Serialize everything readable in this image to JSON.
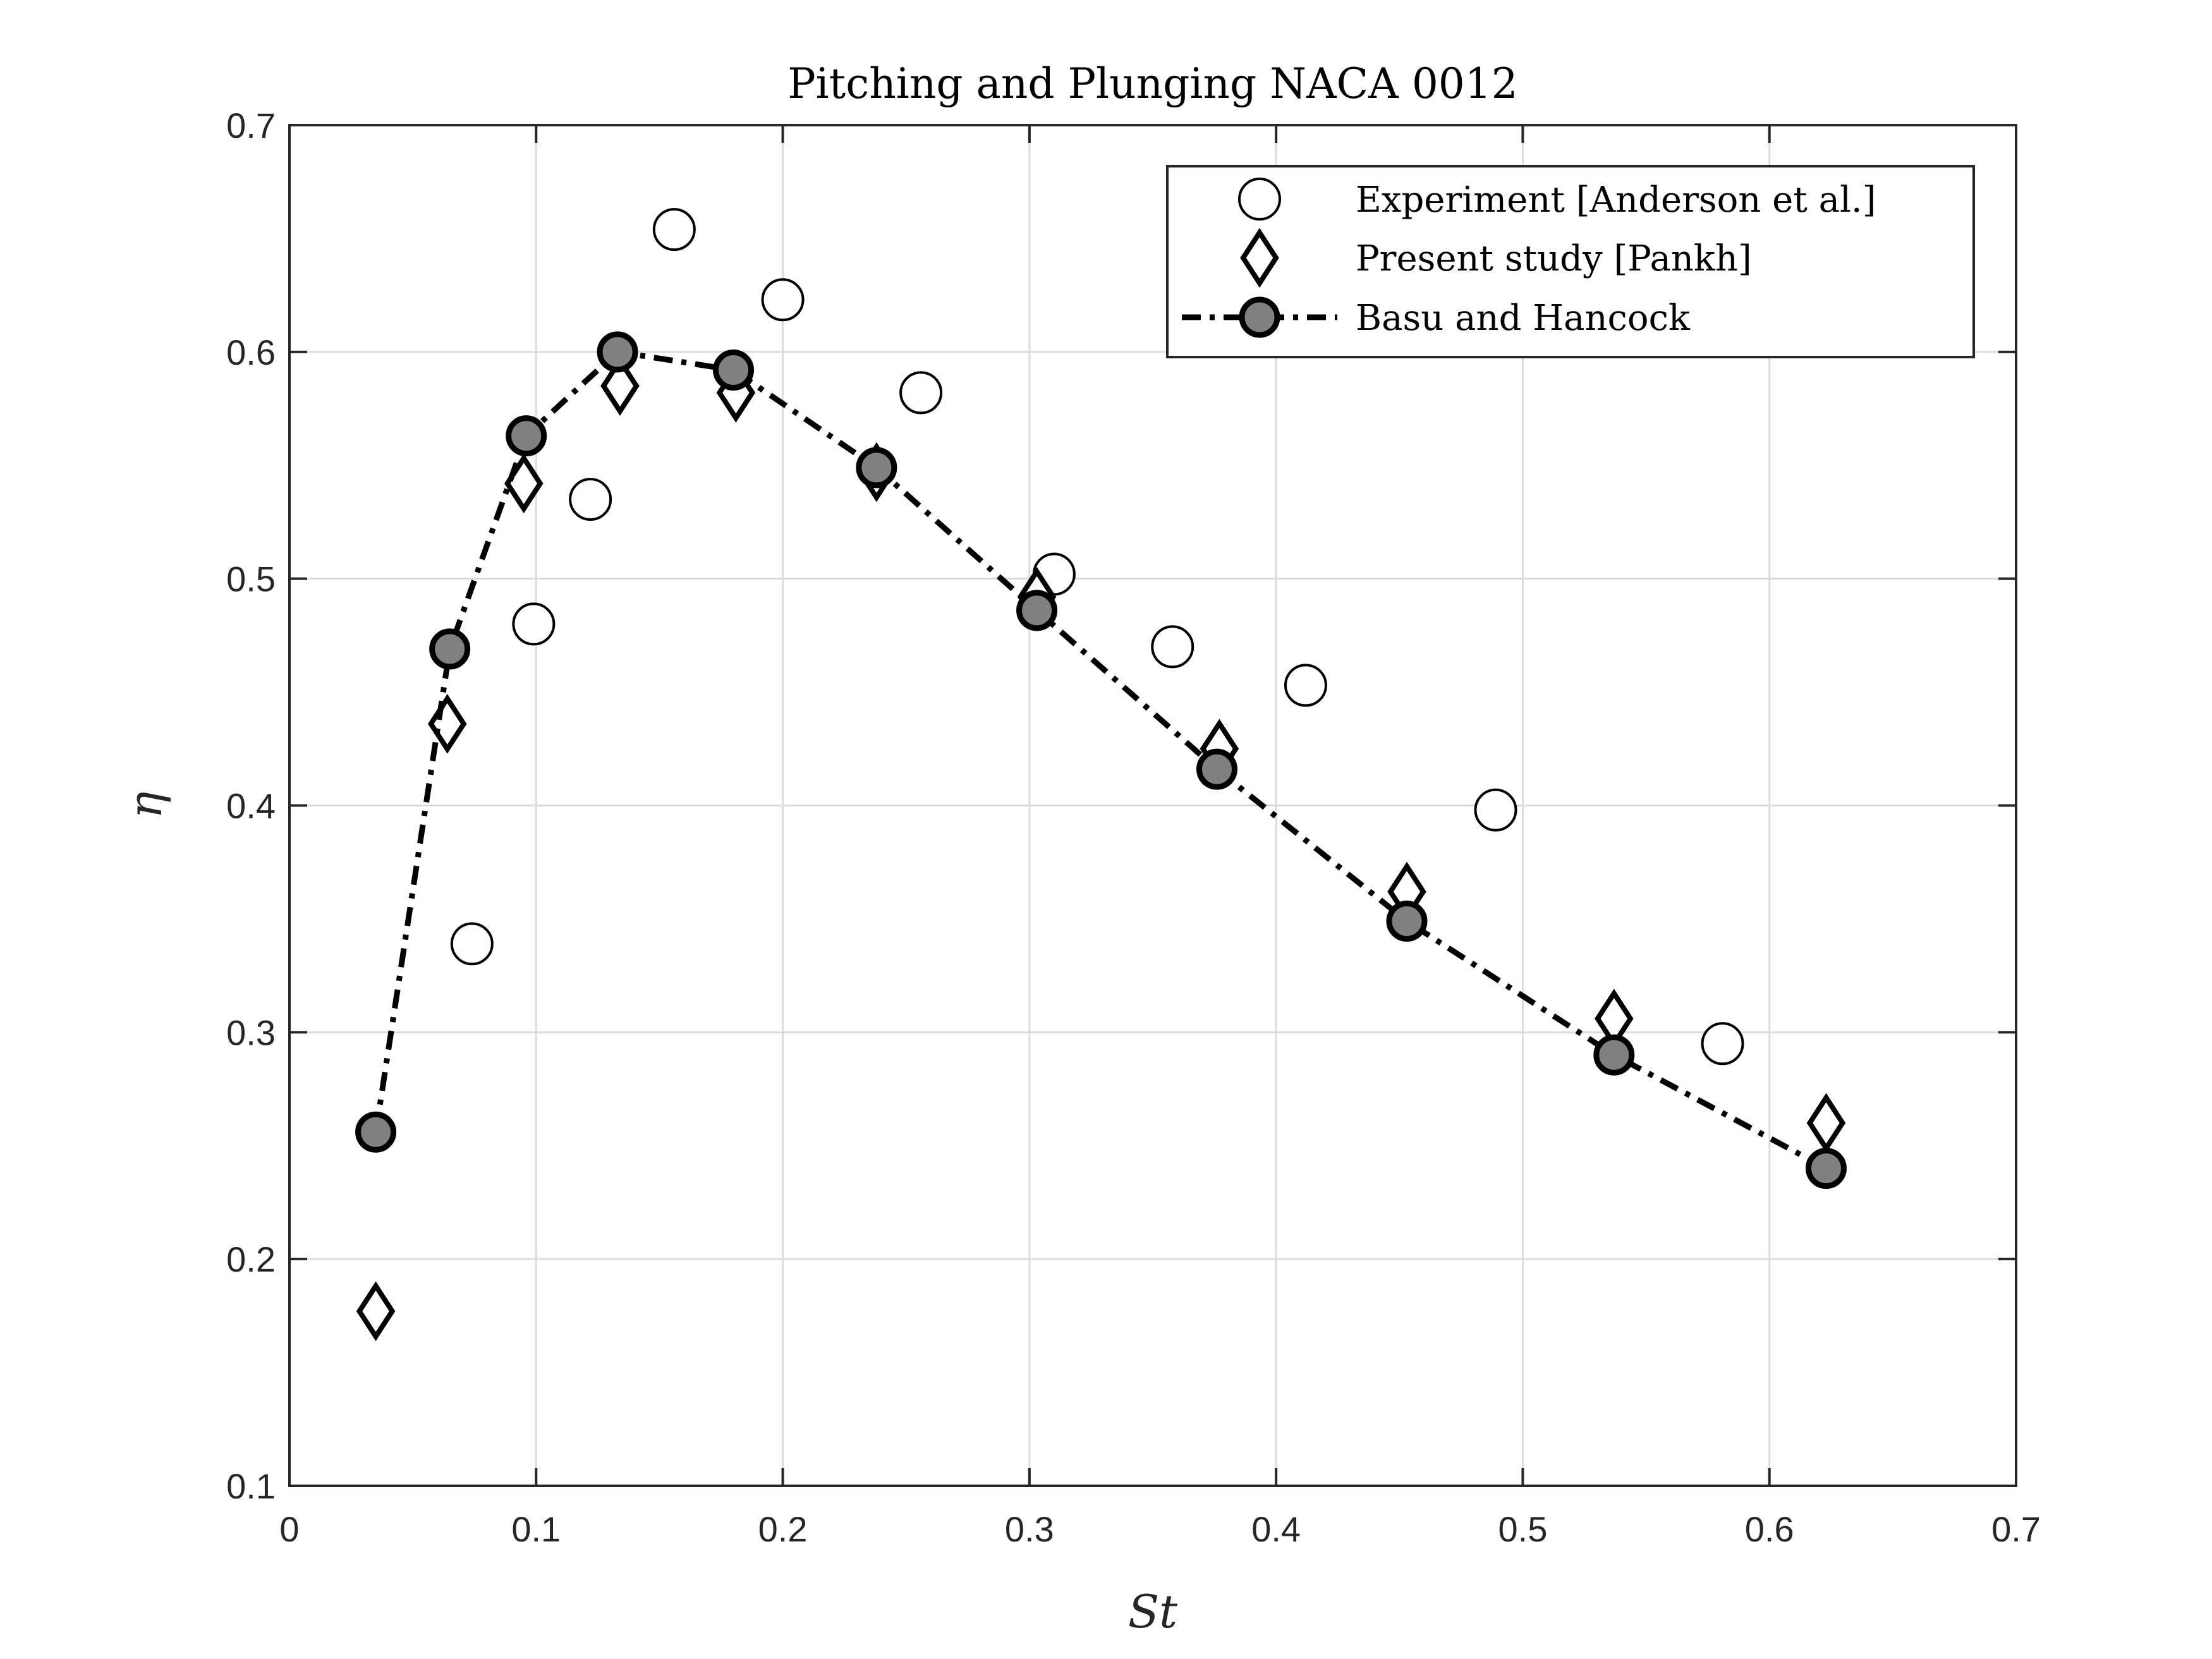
{
  "chart_data": {
    "type": "scatter",
    "title": "Pitching and Plunging NACA 0012",
    "xlabel": "St",
    "ylabel": "η",
    "xlim": [
      0,
      0.7
    ],
    "ylim": [
      0.1,
      0.7
    ],
    "xticks": [
      "0",
      "0.1",
      "0.2",
      "0.3",
      "0.4",
      "0.5",
      "0.6",
      "0.7"
    ],
    "yticks": [
      "0.1",
      "0.2",
      "0.3",
      "0.4",
      "0.5",
      "0.6",
      "0.7"
    ],
    "grid": true,
    "legend_position": "top-right",
    "series": [
      {
        "name": "Experiment [Anderson et al.]",
        "marker": "circle",
        "line": "none",
        "color": "#000000",
        "fill": "#ffffff",
        "points": [
          [
            0.074,
            0.339
          ],
          [
            0.099,
            0.48
          ],
          [
            0.122,
            0.535
          ],
          [
            0.156,
            0.654
          ],
          [
            0.2,
            0.623
          ],
          [
            0.256,
            0.582
          ],
          [
            0.31,
            0.502
          ],
          [
            0.358,
            0.47
          ],
          [
            0.412,
            0.453
          ],
          [
            0.489,
            0.398
          ],
          [
            0.581,
            0.295
          ]
        ]
      },
      {
        "name": "Present study [Pankh]",
        "marker": "diamond",
        "line": "none",
        "color": "#000000",
        "fill": "#ffffff",
        "points": [
          [
            0.035,
            0.177
          ],
          [
            0.064,
            0.436
          ],
          [
            0.095,
            0.542
          ],
          [
            0.134,
            0.585
          ],
          [
            0.181,
            0.582
          ],
          [
            0.238,
            0.547
          ],
          [
            0.303,
            0.492
          ],
          [
            0.377,
            0.425
          ],
          [
            0.453,
            0.362
          ],
          [
            0.537,
            0.306
          ],
          [
            0.623,
            0.26
          ]
        ]
      },
      {
        "name": "Basu and Hancock",
        "marker": "filled-circle",
        "line": "dash-dot",
        "color": "#000000",
        "fill": "#808080",
        "points": [
          [
            0.035,
            0.256
          ],
          [
            0.065,
            0.469
          ],
          [
            0.096,
            0.563
          ],
          [
            0.133,
            0.6
          ],
          [
            0.18,
            0.592
          ],
          [
            0.238,
            0.549
          ],
          [
            0.303,
            0.486
          ],
          [
            0.376,
            0.416
          ],
          [
            0.453,
            0.349
          ],
          [
            0.537,
            0.29
          ],
          [
            0.623,
            0.24
          ]
        ]
      }
    ]
  }
}
